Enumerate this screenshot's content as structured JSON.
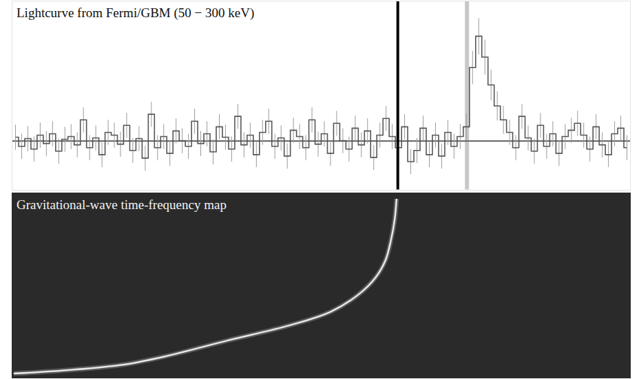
{
  "chart_data": [
    {
      "type": "histogram",
      "title": "Lightcurve from Fermi/GBM (50 − 300 keV)",
      "bins": [
        0,
        1,
        2,
        3,
        4,
        5,
        6,
        7,
        8,
        9,
        10,
        11,
        12,
        13,
        14,
        15,
        16,
        17,
        18,
        19,
        20,
        21,
        22,
        23,
        24,
        25,
        26,
        27,
        28,
        29,
        30,
        31,
        32,
        33,
        34,
        35,
        36,
        37,
        38,
        39,
        40,
        41,
        42,
        43,
        44,
        45,
        46,
        47,
        48,
        49,
        50,
        51,
        52,
        53,
        54,
        55,
        56,
        57,
        58,
        59,
        60,
        61,
        62,
        63,
        64,
        65,
        66,
        67,
        68,
        69,
        70,
        71,
        72,
        73,
        74,
        75,
        76,
        77,
        78,
        79,
        80,
        81,
        82,
        83,
        84,
        85,
        86,
        87,
        88,
        89,
        90,
        91,
        92,
        93,
        94,
        95,
        96,
        97,
        98,
        99,
        100
      ],
      "values": [
        5,
        -8,
        3,
        -12,
        8,
        -4,
        10,
        -15,
        2,
        6,
        -6,
        30,
        -10,
        4,
        -20,
        12,
        8,
        -5,
        22,
        -14,
        3,
        -25,
        38,
        -10,
        6,
        -18,
        14,
        0,
        -8,
        28,
        -4,
        10,
        -16,
        20,
        5,
        -12,
        35,
        -6,
        8,
        -20,
        12,
        28,
        -8,
        4,
        -22,
        15,
        6,
        -10,
        30,
        -5,
        10,
        -18,
        25,
        0,
        -12,
        18,
        -6,
        14,
        -24,
        8,
        32,
        6,
        -10,
        20,
        -30,
        -14,
        18,
        -20,
        8,
        -22,
        12,
        -8,
        6,
        20,
        105,
        150,
        120,
        80,
        50,
        30,
        12,
        -10,
        35,
        4,
        -15,
        22,
        -8,
        10,
        -18,
        6,
        15,
        25,
        8,
        -12,
        20,
        -6,
        -20,
        10,
        18,
        -10
      ],
      "errors": [
        18,
        18,
        18,
        18,
        18,
        18,
        18,
        18,
        18,
        18,
        18,
        18,
        18,
        18,
        18,
        18,
        18,
        18,
        18,
        18,
        18,
        18,
        18,
        18,
        18,
        18,
        18,
        18,
        18,
        18,
        18,
        18,
        18,
        18,
        18,
        18,
        18,
        18,
        18,
        18,
        18,
        18,
        18,
        18,
        18,
        18,
        18,
        18,
        18,
        18,
        18,
        18,
        18,
        18,
        18,
        18,
        18,
        18,
        18,
        18,
        18,
        18,
        18,
        18,
        18,
        18,
        18,
        18,
        18,
        18,
        18,
        18,
        18,
        19,
        24,
        26,
        25,
        22,
        21,
        20,
        18,
        18,
        18,
        18,
        18,
        18,
        18,
        18,
        18,
        18,
        18,
        18,
        18,
        18,
        18,
        18,
        18,
        18,
        18,
        18
      ],
      "color": "#555555",
      "vlines": [
        {
          "x": 62.4,
          "color": "#000000"
        },
        {
          "x": 73.6,
          "color": "#c8c8c8"
        }
      ],
      "xlim": [
        0,
        100
      ],
      "ylim": [
        -70,
        200
      ],
      "tick_labels": false
    },
    {
      "type": "line",
      "title": "Gravitational-wave time-frequency map",
      "x": [
        0.2,
        9.1,
        18.1,
        24.7,
        34.8,
        44.8,
        51.5,
        56.0,
        58.8,
        60.4,
        61.3,
        61.9,
        62.2
      ],
      "values": [
        2.2,
        4.1,
        7.1,
        11.5,
        20.1,
        28.3,
        35.7,
        45.0,
        54.3,
        63.6,
        74.7,
        85.9,
        97.0
      ],
      "color": "#e8e8e8",
      "xlim": [
        0,
        100
      ],
      "ylim": [
        0,
        100
      ],
      "tick_labels": false
    }
  ]
}
